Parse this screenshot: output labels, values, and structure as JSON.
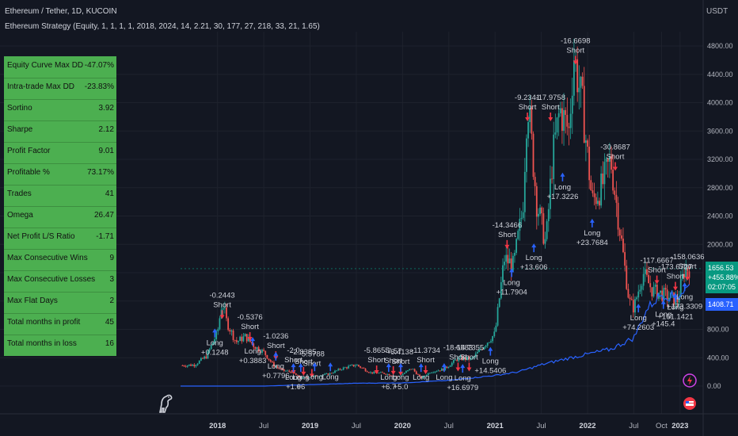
{
  "header": {
    "title": "Ethereum / Tether, 1D, KUCOIN",
    "strategy": "Ethereum Strategy (Equity, 1, 1, 1, 1, 2018, 2024, 14, 2.21, 30, 177, 27, 218, 33, 21, 1.65)",
    "currency": "USDT"
  },
  "stats": [
    {
      "label": "Equity Curve Max DD",
      "value": "-47.07%"
    },
    {
      "label": "Intra-trade Max DD",
      "value": "-23.83%"
    },
    {
      "label": "Sortino",
      "value": "3.92"
    },
    {
      "label": "Sharpe",
      "value": "2.12"
    },
    {
      "label": "Profit Factor",
      "value": "9.01"
    },
    {
      "label": "Profitable %",
      "value": "73.17%"
    },
    {
      "label": "Trades",
      "value": "41"
    },
    {
      "label": "Omega",
      "value": "26.47"
    },
    {
      "label": "Net Profit L/S Ratio",
      "value": "-1.71"
    },
    {
      "label": "Max Consecutive Wins",
      "value": "9"
    },
    {
      "label": "Max Consecutive Losses",
      "value": "3"
    },
    {
      "label": "Max Flat Days",
      "value": "2"
    },
    {
      "label": "Total months in profit",
      "value": "45"
    },
    {
      "label": "Total months in loss",
      "value": "16"
    }
  ],
  "price_tag": {
    "price": "1656.53",
    "change": "+455.88%",
    "countdown": "02:07:05",
    "equity": "1408.71"
  },
  "colors": {
    "up": "#26a69a",
    "down": "#ef5350",
    "equity": "#2962ff",
    "long": "#2962ff",
    "short": "#f23645",
    "grid": "#1e222d",
    "panel": "#4caf50"
  },
  "icons": [
    "dino-logo-icon",
    "lightning-icon",
    "flag-icon"
  ],
  "chart_data": {
    "type": "candlestick",
    "ylim": [
      0,
      4900
    ],
    "y_ticks": [
      0,
      400,
      800,
      1200,
      1600,
      2000,
      2400,
      2800,
      3200,
      3600,
      4000,
      4400,
      4800
    ],
    "y_tick_labels": [
      "0.00",
      "400.00",
      "800.00",
      "1200.00",
      "1600.00",
      "2000.00",
      "2400.00",
      "2800.00",
      "3200.00",
      "3600.00",
      "4000.00",
      "4400.00",
      "4800.00"
    ],
    "x_range": [
      2017.6,
      2023.25
    ],
    "x_ticks": [
      {
        "t": 2018.0,
        "label": "2018"
      },
      {
        "t": 2018.5,
        "label": "Jul"
      },
      {
        "t": 2019.0,
        "label": "2019"
      },
      {
        "t": 2019.5,
        "label": "Jul"
      },
      {
        "t": 2020.0,
        "label": "2020"
      },
      {
        "t": 2020.5,
        "label": "Jul"
      },
      {
        "t": 2021.0,
        "label": "2021"
      },
      {
        "t": 2021.5,
        "label": "Jul"
      },
      {
        "t": 2022.0,
        "label": "2022"
      },
      {
        "t": 2022.5,
        "label": "Jul"
      },
      {
        "t": 2022.8,
        "label": "Oct"
      },
      {
        "t": 2023.0,
        "label": "2023"
      }
    ],
    "price_path": [
      [
        2017.62,
        290
      ],
      [
        2017.75,
        300
      ],
      [
        2017.88,
        420
      ],
      [
        2018.0,
        760
      ],
      [
        2018.05,
        1200
      ],
      [
        2018.1,
        900
      ],
      [
        2018.2,
        620
      ],
      [
        2018.3,
        700
      ],
      [
        2018.4,
        560
      ],
      [
        2018.5,
        480
      ],
      [
        2018.6,
        300
      ],
      [
        2018.7,
        220
      ],
      [
        2018.8,
        200
      ],
      [
        2018.9,
        110
      ],
      [
        2019.0,
        130
      ],
      [
        2019.2,
        170
      ],
      [
        2019.35,
        250
      ],
      [
        2019.5,
        300
      ],
      [
        2019.65,
        190
      ],
      [
        2019.8,
        180
      ],
      [
        2019.95,
        130
      ],
      [
        2020.1,
        250
      ],
      [
        2020.2,
        110
      ],
      [
        2020.3,
        200
      ],
      [
        2020.45,
        240
      ],
      [
        2020.6,
        390
      ],
      [
        2020.75,
        380
      ],
      [
        2020.9,
        600
      ],
      [
        2021.0,
        740
      ],
      [
        2021.1,
        1800
      ],
      [
        2021.2,
        1700
      ],
      [
        2021.3,
        2500
      ],
      [
        2021.35,
        4100
      ],
      [
        2021.45,
        2600
      ],
      [
        2021.55,
        2000
      ],
      [
        2021.62,
        3200
      ],
      [
        2021.7,
        3900
      ],
      [
        2021.8,
        3600
      ],
      [
        2021.85,
        4700
      ],
      [
        2021.95,
        3900
      ],
      [
        2022.05,
        2600
      ],
      [
        2022.15,
        2800
      ],
      [
        2022.25,
        3200
      ],
      [
        2022.35,
        2200
      ],
      [
        2022.45,
        1200
      ],
      [
        2022.5,
        1100
      ],
      [
        2022.6,
        1600
      ],
      [
        2022.7,
        1350
      ],
      [
        2022.8,
        1300
      ],
      [
        2022.9,
        1250
      ],
      [
        2022.97,
        1200
      ],
      [
        2023.05,
        1650
      ],
      [
        2023.1,
        1656
      ]
    ],
    "equity_path": [
      [
        2017.6,
        0
      ],
      [
        2018.0,
        0
      ],
      [
        2018.5,
        0
      ],
      [
        2019.0,
        20
      ],
      [
        2019.5,
        40
      ],
      [
        2020.0,
        45
      ],
      [
        2020.5,
        80
      ],
      [
        2021.0,
        150
      ],
      [
        2021.25,
        200
      ],
      [
        2021.5,
        300
      ],
      [
        2021.75,
        380
      ],
      [
        2022.0,
        450
      ],
      [
        2022.25,
        520
      ],
      [
        2022.5,
        680
      ],
      [
        2022.65,
        1100
      ],
      [
        2022.8,
        1300
      ],
      [
        2022.95,
        1250
      ],
      [
        2023.1,
        1408
      ]
    ],
    "short_signals": [
      {
        "t": 2018.05,
        "y": 1160,
        "label": "-0.2443\nShort"
      },
      {
        "t": 2018.35,
        "y": 850,
        "label": "-0.5376\nShort"
      },
      {
        "t": 2018.63,
        "y": 580,
        "label": "-1.0236\nShort"
      },
      {
        "t": 2018.82,
        "y": 380,
        "label": "-2.0\nShort"
      },
      {
        "t": 2018.93,
        "y": 360,
        "label": "-2.8385\nShort"
      },
      {
        "t": 2019.02,
        "y": 330,
        "label": "-5.5788\nShort"
      },
      {
        "t": 2019.72,
        "y": 380,
        "label": "-5.8655\nShort"
      },
      {
        "t": 2019.9,
        "y": 370,
        "label": "-7.57\nShort"
      },
      {
        "t": 2019.98,
        "y": 360,
        "label": "-6.4138\nShort"
      },
      {
        "t": 2020.25,
        "y": 380,
        "label": "-11.3734\nShort"
      },
      {
        "t": 2020.6,
        "y": 420,
        "label": "-18.6583\nShort"
      },
      {
        "t": 2020.72,
        "y": 420,
        "label": "-14.7355\nShort"
      },
      {
        "t": 2021.13,
        "y": 2150,
        "label": "-14.3466\nShort"
      },
      {
        "t": 2021.35,
        "y": 3950,
        "label": "-9.2341\nShort"
      },
      {
        "t": 2021.6,
        "y": 3950,
        "label": "-17.9758\nShort"
      },
      {
        "t": 2021.87,
        "y": 4750,
        "label": "-16.6698\nShort"
      },
      {
        "t": 2022.3,
        "y": 3250,
        "label": "-30.8687\nShort"
      },
      {
        "t": 2022.75,
        "y": 1650,
        "label": "-117.6667\nShort"
      },
      {
        "t": 2022.95,
        "y": 1560,
        "label": "-173.6727\nShort"
      },
      {
        "t": 2023.08,
        "y": 1700,
        "label": "-158.0636\nShort"
      }
    ],
    "long_signals": [
      {
        "t": 2017.97,
        "y": 600,
        "label": "Long\n+0.1248"
      },
      {
        "t": 2018.38,
        "y": 480,
        "label": "Long\n+0.3883"
      },
      {
        "t": 2018.63,
        "y": 270,
        "label": "Long\n+0.7796"
      },
      {
        "t": 2018.82,
        "y": 110,
        "label": "Long\n+1.0"
      },
      {
        "t": 2018.9,
        "y": 110,
        "label": "Long\n+6"
      },
      {
        "t": 2019.05,
        "y": 120,
        "label": "Long"
      },
      {
        "t": 2019.22,
        "y": 120,
        "label": "Long"
      },
      {
        "t": 2019.85,
        "y": 110,
        "label": "Long\n+6.7"
      },
      {
        "t": 2019.98,
        "y": 110,
        "label": "Long\n+5.0"
      },
      {
        "t": 2020.2,
        "y": 110,
        "label": "Long"
      },
      {
        "t": 2020.45,
        "y": 110,
        "label": "Long"
      },
      {
        "t": 2020.65,
        "y": 100,
        "label": "Long\n+16.6979"
      },
      {
        "t": 2020.95,
        "y": 340,
        "label": "Long\n+14.5406"
      },
      {
        "t": 2021.18,
        "y": 1450,
        "label": "Long\n+11.7904"
      },
      {
        "t": 2021.42,
        "y": 1800,
        "label": "Long\n+13.606"
      },
      {
        "t": 2021.73,
        "y": 2800,
        "label": "Long\n+17.3226"
      },
      {
        "t": 2022.05,
        "y": 2150,
        "label": "Long\n+23.7684"
      },
      {
        "t": 2022.55,
        "y": 950,
        "label": "Long\n+74.2603"
      },
      {
        "t": 2022.82,
        "y": 1000,
        "label": "Long\n+145.4"
      },
      {
        "t": 2022.95,
        "y": 1100,
        "label": "Long\n+161.1421"
      },
      {
        "t": 2023.05,
        "y": 1250,
        "label": "Long\n+173.3309"
      }
    ]
  }
}
